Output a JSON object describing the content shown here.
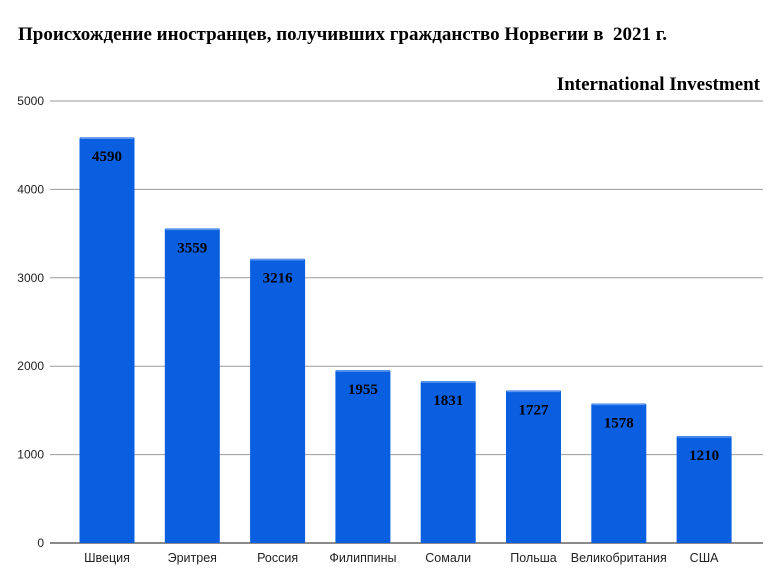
{
  "chart_data": {
    "type": "bar",
    "title": "Происхождение иностранцев, получивших гражданство Норвегии в  2021 г.",
    "source": "International Investment",
    "categories": [
      "Швеция",
      "Эритрея",
      "Россия",
      "Филиппины",
      "Сомали",
      "Польша",
      "Великобритания",
      "США"
    ],
    "values": [
      4590,
      3559,
      3216,
      1955,
      1831,
      1727,
      1578,
      1210
    ],
    "data_labels": [
      "4590",
      "3559",
      "3216",
      "1955",
      "1831",
      "1727",
      "1578",
      "1210"
    ],
    "y_ticks": [
      "0",
      "1000",
      "2000",
      "3000",
      "4000",
      "5000"
    ],
    "ylim": [
      0,
      5000
    ],
    "grid": true,
    "bar_color": "#0a5fe0",
    "xlabel": "",
    "ylabel": ""
  }
}
